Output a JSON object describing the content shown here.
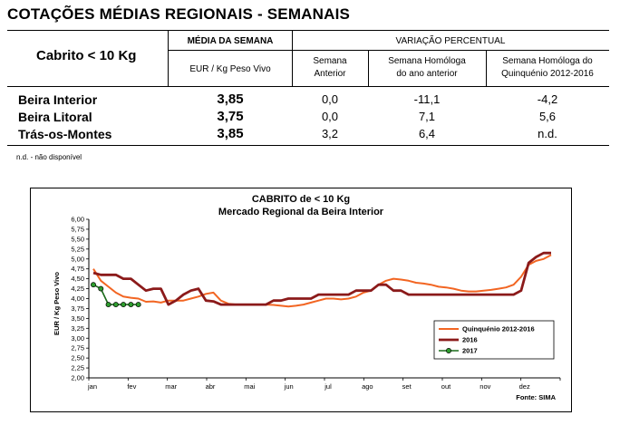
{
  "report_title": "COTAÇÕES MÉDIAS REGIONAIS - SEMANAIS",
  "table": {
    "product": "Cabrito < 10 Kg",
    "col_media": "MÉDIA DA SEMANA",
    "col_media_unit": "EUR / Kg Peso Vivo",
    "col_variacao": "VARIAÇÃO PERCENTUAL",
    "sub_cols": [
      "Semana|Anterior",
      "Semana Homóloga|do ano anterior",
      "Semana Homóloga do|Quinquénio 2012-2016"
    ],
    "rows": [
      {
        "region": "Beira Interior",
        "media": "3,85",
        "anterior": "0,0",
        "homologa_ano": "-11,1",
        "homologa_quinquenio": "-4,2"
      },
      {
        "region": "Beira Litoral",
        "media": "3,75",
        "anterior": "0,0",
        "homologa_ano": "7,1",
        "homologa_quinquenio": "5,6"
      },
      {
        "region": "Trás-os-Montes",
        "media": "3,85",
        "anterior": "3,2",
        "homologa_ano": "6,4",
        "homologa_quinquenio": "n.d."
      }
    ],
    "note": "n.d. - não disponível"
  },
  "chart_data": {
    "type": "line",
    "title": "CABRITO de < 10 Kg",
    "subtitle": "Mercado Regional da Beira Interior",
    "ylabel": "EUR / Kg Peso Vivo",
    "ylim": [
      2.0,
      6.0
    ],
    "yticks": [
      "2,00",
      "2,25",
      "2,50",
      "2,75",
      "3,00",
      "3,25",
      "3,50",
      "3,75",
      "4,00",
      "4,25",
      "4,50",
      "4,75",
      "5,00",
      "5,25",
      "5,50",
      "5,75",
      "6,00"
    ],
    "months": [
      "jan",
      "fev",
      "mar",
      "abr",
      "mai",
      "jun",
      "jul",
      "ago",
      "set",
      "out",
      "nov",
      "dez"
    ],
    "source": "Fonte: SIMA",
    "grid": false,
    "legend_position": "bottom-right",
    "series": [
      {
        "name": "Quinquénio 2012-2016",
        "color": "#f26522",
        "marker": false,
        "values": [
          4.75,
          4.45,
          4.3,
          4.15,
          4.05,
          4.02,
          4.0,
          3.92,
          3.93,
          3.9,
          3.95,
          3.95,
          3.95,
          4.0,
          4.05,
          4.12,
          4.15,
          3.95,
          3.87,
          3.85,
          3.84,
          3.85,
          3.85,
          3.85,
          3.84,
          3.82,
          3.8,
          3.82,
          3.85,
          3.9,
          3.95,
          4.0,
          4.0,
          3.98,
          4.0,
          4.05,
          4.15,
          4.2,
          4.35,
          4.45,
          4.5,
          4.48,
          4.45,
          4.4,
          4.38,
          4.35,
          4.3,
          4.28,
          4.25,
          4.2,
          4.18,
          4.18,
          4.2,
          4.22,
          4.25,
          4.28,
          4.35,
          4.55,
          4.85,
          4.95,
          5.0,
          5.1
        ]
      },
      {
        "name": "2016",
        "color": "#8b1a1a",
        "marker": false,
        "values": [
          4.65,
          4.6,
          4.6,
          4.6,
          4.5,
          4.5,
          4.35,
          4.2,
          4.25,
          4.25,
          3.85,
          3.95,
          4.1,
          4.2,
          4.25,
          3.95,
          3.93,
          3.85,
          3.85,
          3.85,
          3.85,
          3.85,
          3.85,
          3.85,
          3.95,
          3.95,
          4.0,
          4.0,
          4.0,
          4.0,
          4.1,
          4.1,
          4.1,
          4.1,
          4.1,
          4.2,
          4.2,
          4.2,
          4.35,
          4.35,
          4.2,
          4.2,
          4.1,
          4.1,
          4.1,
          4.1,
          4.1,
          4.1,
          4.1,
          4.1,
          4.1,
          4.1,
          4.1,
          4.1,
          4.1,
          4.1,
          4.1,
          4.2,
          4.9,
          5.05,
          5.15,
          5.15
        ]
      },
      {
        "name": "2017",
        "color": "#1a6b1a",
        "marker": true,
        "values": [
          4.35,
          4.25,
          3.85,
          3.85,
          3.85,
          3.85,
          3.85
        ]
      }
    ]
  }
}
